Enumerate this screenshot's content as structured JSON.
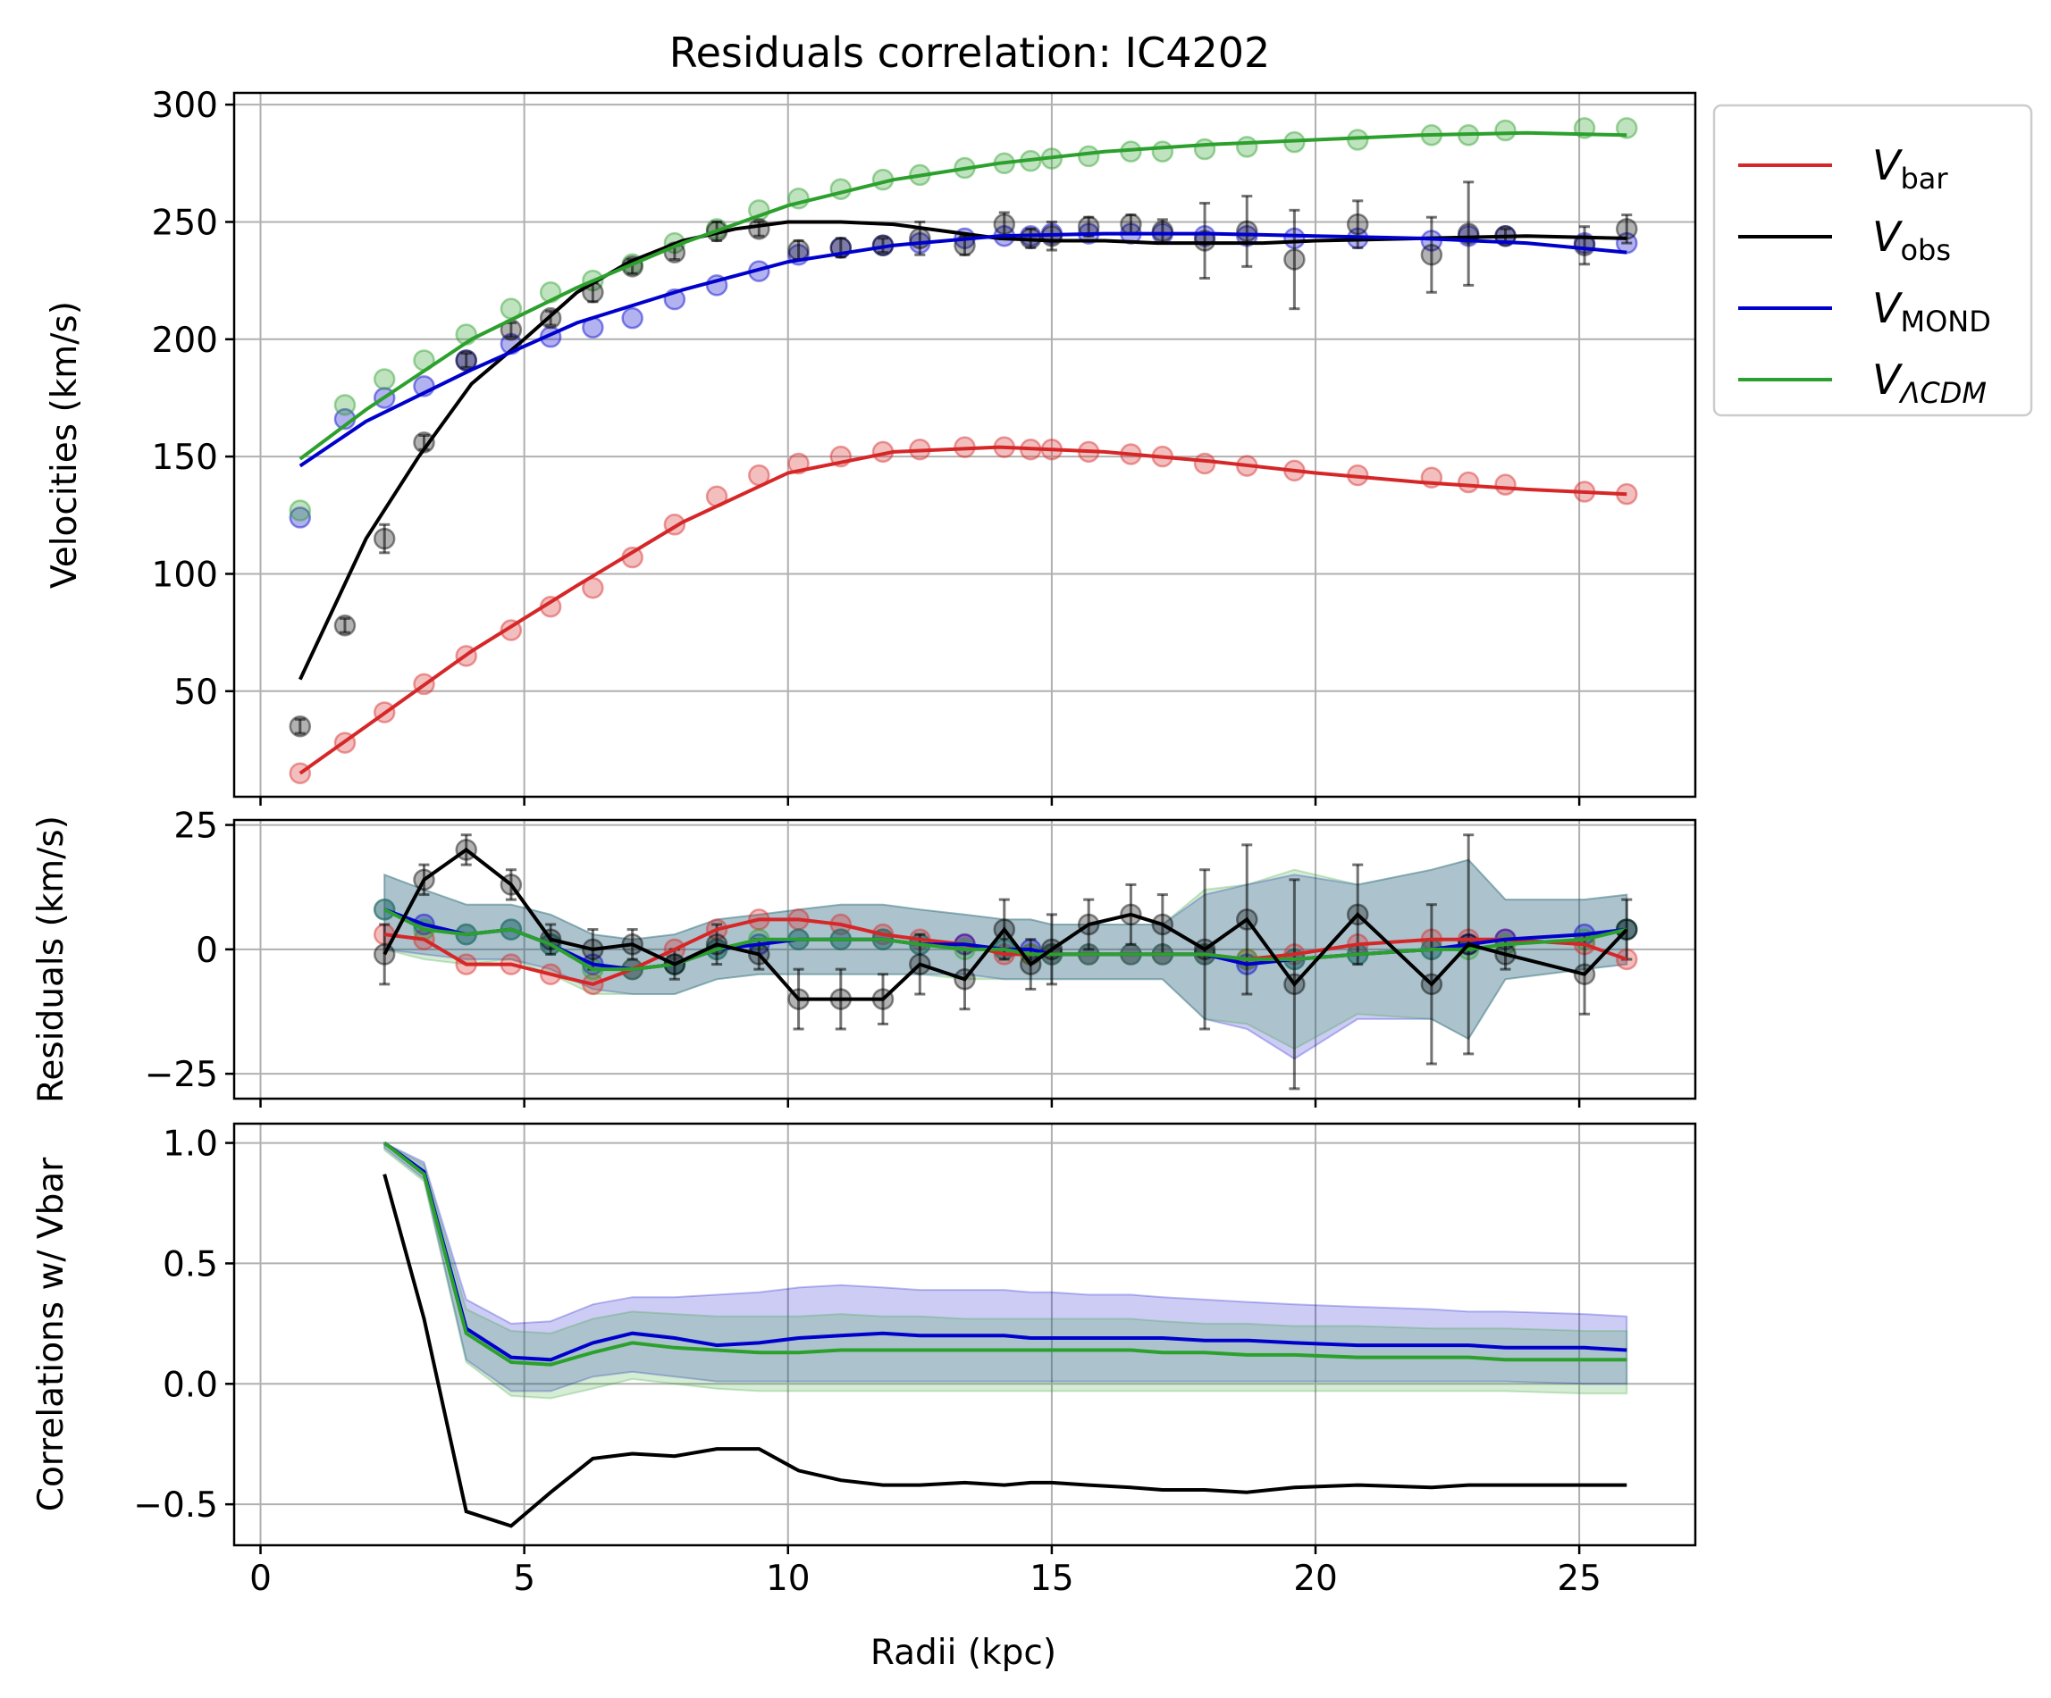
{
  "title": "Residuals correlation: IC4202",
  "colors": {
    "bar": "#d62728",
    "obs": "#000000",
    "mond": "#0000cc",
    "lcdm": "#2ca02c",
    "grid": "#b0b0b0"
  },
  "legend": {
    "placement": "outside upper-right",
    "entries": [
      {
        "key": "bar",
        "main": "V",
        "sub": "bar",
        "italic_sub": false
      },
      {
        "key": "obs",
        "main": "V",
        "sub": "obs",
        "italic_sub": false
      },
      {
        "key": "mond",
        "main": "V",
        "sub": "MOND",
        "italic_sub": false
      },
      {
        "key": "lcdm",
        "main": "V",
        "sub": "ΛCDM",
        "italic_sub": true
      }
    ]
  },
  "chart_data": [
    {
      "type": "line",
      "panel": "velocities",
      "ylabel": "Velocities (km/s)",
      "xlim": [
        -0.5,
        27.2
      ],
      "ylim": [
        5,
        305
      ],
      "xticks": [
        0,
        5,
        10,
        15,
        20,
        25
      ],
      "yticks": [
        50,
        100,
        150,
        200,
        250,
        300
      ],
      "grid": true,
      "series": [
        {
          "key": "bar",
          "name": "V_bar",
          "x": [
            0.75,
            1.6,
            2.35,
            3.1,
            3.9,
            4.75,
            5.5,
            6.3,
            7.05,
            7.85,
            8.65,
            9.45,
            10.2,
            11.0,
            11.8,
            12.5,
            13.35,
            14.1,
            14.6,
            15.0,
            15.7,
            16.5,
            17.1,
            17.9,
            18.7,
            19.6,
            20.8,
            22.2,
            22.9,
            23.6,
            25.1,
            25.9
          ],
          "y": [
            15,
            28,
            41,
            53,
            65,
            76,
            86,
            94,
            107,
            121,
            133,
            142,
            147,
            150,
            152,
            153,
            154,
            154,
            153,
            153,
            152,
            151,
            150,
            147,
            146,
            144,
            142,
            141,
            139,
            138,
            135,
            134
          ],
          "line_x": [
            0.75,
            2,
            4,
            6,
            8,
            10,
            12,
            14,
            16,
            18,
            20,
            22,
            24,
            25.9
          ],
          "line_y": [
            15,
            35,
            67,
            95,
            122,
            143,
            152,
            154,
            152,
            148,
            143,
            139,
            136,
            134
          ]
        },
        {
          "key": "obs",
          "name": "V_obs",
          "x": [
            0.75,
            1.6,
            2.35,
            3.1,
            3.9,
            4.75,
            5.5,
            6.3,
            7.05,
            7.85,
            8.65,
            9.45,
            10.2,
            11.0,
            11.8,
            12.5,
            13.35,
            14.1,
            14.6,
            15.0,
            15.7,
            16.5,
            17.1,
            17.9,
            18.7,
            19.6,
            20.8,
            22.2,
            22.9,
            23.6,
            25.1,
            25.9
          ],
          "y": [
            35,
            78,
            115,
            156,
            191,
            204,
            209,
            220,
            231,
            237,
            246,
            247,
            238,
            239,
            240,
            243,
            240,
            249,
            243,
            244,
            248,
            249,
            246,
            242,
            246,
            234,
            249,
            236,
            245,
            244,
            240,
            247
          ],
          "err": [
            3,
            3,
            6,
            3,
            3,
            3,
            3,
            4,
            3,
            3,
            4,
            3,
            4,
            4,
            3,
            7,
            4,
            5,
            4,
            6,
            4,
            4,
            5,
            16,
            15,
            21,
            10,
            16,
            22,
            3,
            8,
            6
          ],
          "line_x": [
            0.75,
            2,
            3,
            4,
            5,
            6,
            7,
            8,
            9,
            10,
            11,
            12,
            13,
            14,
            15,
            16,
            17,
            18,
            19,
            20,
            22,
            24,
            25.9
          ],
          "line_y": [
            55,
            115,
            150,
            181,
            200,
            220,
            233,
            242,
            247,
            250,
            250,
            249,
            246,
            243,
            242,
            242,
            241,
            241,
            241,
            242,
            243,
            244,
            243
          ]
        },
        {
          "key": "mond",
          "name": "V_MOND",
          "x": [
            0.75,
            1.6,
            2.35,
            3.1,
            3.9,
            4.75,
            5.5,
            6.3,
            7.05,
            7.85,
            8.65,
            9.45,
            10.2,
            11.0,
            11.8,
            12.5,
            13.35,
            14.1,
            14.6,
            15.0,
            15.7,
            16.5,
            17.1,
            17.9,
            18.7,
            19.6,
            20.8,
            22.2,
            22.9,
            23.6,
            25.1,
            25.9
          ],
          "y": [
            124,
            166,
            175,
            180,
            191,
            198,
            201,
            205,
            209,
            217,
            223,
            229,
            236,
            239,
            240,
            241,
            243,
            244,
            244,
            245,
            245,
            245,
            245,
            244,
            244,
            243,
            243,
            242,
            244,
            244,
            241,
            241
          ],
          "line_x": [
            0.75,
            2,
            4,
            6,
            8,
            10,
            12,
            14,
            16,
            18,
            20,
            22,
            24,
            25.9
          ],
          "line_y": [
            146,
            165,
            187,
            207,
            221,
            233,
            240,
            244,
            245,
            245,
            244,
            243,
            241,
            237
          ]
        },
        {
          "key": "lcdm",
          "name": "V_ΛCDM",
          "x": [
            0.75,
            1.6,
            2.35,
            3.1,
            3.9,
            4.75,
            5.5,
            6.3,
            7.05,
            7.85,
            8.65,
            9.45,
            10.2,
            11.0,
            11.8,
            12.5,
            13.35,
            14.1,
            14.6,
            15.0,
            15.7,
            16.5,
            17.1,
            17.9,
            18.7,
            19.6,
            20.8,
            22.2,
            22.9,
            23.6,
            25.1,
            25.9
          ],
          "y": [
            127,
            172,
            183,
            191,
            202,
            213,
            220,
            225,
            232,
            241,
            247,
            255,
            260,
            264,
            268,
            270,
            273,
            275,
            276,
            277,
            278,
            280,
            280,
            281,
            282,
            284,
            285,
            287,
            287,
            289,
            290,
            290
          ],
          "line_x": [
            0.75,
            2,
            4,
            6,
            8,
            10,
            12,
            14,
            16,
            18,
            20,
            22,
            24,
            25.9
          ],
          "line_y": [
            149,
            170,
            200,
            222,
            241,
            257,
            268,
            275,
            280,
            283,
            285,
            287,
            288,
            287
          ]
        }
      ]
    },
    {
      "type": "line",
      "panel": "residuals",
      "ylabel": "Residuals (km/s)",
      "xlim": [
        -0.5,
        27.2
      ],
      "ylim": [
        -30,
        26
      ],
      "xticks": [
        0,
        5,
        10,
        15,
        20,
        25
      ],
      "yticks": [
        -25,
        0,
        25
      ],
      "grid": true,
      "x": [
        2.35,
        3.1,
        3.9,
        4.75,
        5.5,
        6.3,
        7.05,
        7.85,
        8.65,
        9.45,
        10.2,
        11.0,
        11.8,
        12.5,
        13.35,
        14.1,
        14.6,
        15.0,
        15.7,
        16.5,
        17.1,
        17.9,
        18.7,
        19.6,
        20.8,
        22.2,
        22.9,
        23.6,
        25.1,
        25.9
      ],
      "series": [
        {
          "key": "bar",
          "name": "V_bar",
          "y": [
            3,
            2,
            -3,
            -3,
            -5,
            -7,
            -4,
            0,
            4,
            6,
            6,
            5,
            3,
            2,
            1,
            -1,
            -1,
            -1,
            -1,
            -1,
            -1,
            -1,
            -2,
            -1,
            1,
            2,
            2,
            2,
            1,
            -2
          ]
        },
        {
          "key": "obs",
          "name": "V_obs",
          "y": [
            -1,
            14,
            20,
            13,
            2,
            0,
            1,
            -3,
            1,
            -1,
            -10,
            -10,
            -10,
            -3,
            -6,
            4,
            -3,
            0,
            5,
            7,
            5,
            0,
            6,
            -7,
            7,
            -7,
            1,
            -1,
            -5,
            4
          ],
          "err": [
            6,
            3,
            3,
            3,
            3,
            4,
            3,
            3,
            4,
            3,
            6,
            6,
            5,
            6,
            6,
            6,
            5,
            7,
            5,
            6,
            6,
            16,
            15,
            21,
            10,
            16,
            22,
            3,
            8,
            6
          ]
        },
        {
          "key": "mond",
          "name": "V_MOND",
          "y": [
            8,
            5,
            3,
            4,
            1,
            -3,
            -4,
            -3,
            0,
            1,
            2,
            2,
            2,
            1,
            1,
            0,
            0,
            -1,
            -1,
            -1,
            -1,
            -1,
            -3,
            -2,
            -1,
            0,
            1,
            2,
            3,
            4
          ],
          "band_lo": [
            0,
            -1,
            -2,
            -2,
            -4,
            -8,
            -9,
            -9,
            -6,
            -5,
            -5,
            -5,
            -5,
            -5,
            -5,
            -6,
            -6,
            -6,
            -6,
            -6,
            -6,
            -14,
            -16,
            -22,
            -14,
            -14,
            -18,
            -6,
            -4,
            -3
          ],
          "band_hi": [
            15,
            12,
            9,
            9,
            7,
            3,
            2,
            3,
            6,
            7,
            8,
            9,
            9,
            8,
            7,
            6,
            6,
            5,
            5,
            5,
            5,
            11,
            13,
            15,
            13,
            16,
            18,
            10,
            10,
            11
          ]
        },
        {
          "key": "lcdm",
          "name": "V_ΛCDM",
          "y": [
            8,
            4,
            3,
            4,
            1,
            -4,
            -4,
            -3,
            0,
            2,
            2,
            2,
            2,
            1,
            0,
            0,
            -1,
            -1,
            -1,
            -1,
            -1,
            -1,
            -2,
            -2,
            -1,
            0,
            0,
            1,
            2,
            4
          ],
          "band_lo": [
            0,
            -2,
            -3,
            -2,
            -5,
            -9,
            -9,
            -9,
            -6,
            -5,
            -5,
            -5,
            -5,
            -5,
            -6,
            -6,
            -6,
            -6,
            -6,
            -6,
            -6,
            -14,
            -15,
            -20,
            -13,
            -14,
            -18,
            -6,
            -4,
            -3
          ],
          "band_hi": [
            15,
            12,
            9,
            9,
            7,
            3,
            2,
            3,
            6,
            7,
            8,
            9,
            9,
            8,
            7,
            6,
            6,
            5,
            5,
            5,
            5,
            12,
            13,
            16,
            13,
            16,
            18,
            10,
            10,
            11
          ]
        }
      ]
    },
    {
      "type": "line",
      "panel": "correlations",
      "ylabel": "Correlations w/ Vbar",
      "xlabel": "Radii (kpc)",
      "xlim": [
        -0.5,
        27.2
      ],
      "ylim": [
        -0.67,
        1.08
      ],
      "xticks": [
        0,
        5,
        10,
        15,
        20,
        25
      ],
      "yticks": [
        -0.5,
        0.0,
        0.5,
        1.0
      ],
      "grid": true,
      "x": [
        2.35,
        3.1,
        3.9,
        4.75,
        5.5,
        6.3,
        7.05,
        7.85,
        8.65,
        9.45,
        10.2,
        11.0,
        11.8,
        12.5,
        13.35,
        14.1,
        14.6,
        15.0,
        15.7,
        16.5,
        17.1,
        17.9,
        18.7,
        19.6,
        20.8,
        22.2,
        22.9,
        23.6,
        25.1,
        25.9
      ],
      "series": [
        {
          "key": "obs",
          "name": "V_obs",
          "y": [
            0.87,
            0.27,
            -0.53,
            -0.59,
            -0.45,
            -0.31,
            -0.29,
            -0.3,
            -0.27,
            -0.27,
            -0.36,
            -0.4,
            -0.42,
            -0.42,
            -0.41,
            -0.42,
            -0.41,
            -0.41,
            -0.42,
            -0.43,
            -0.44,
            -0.44,
            -0.45,
            -0.43,
            -0.42,
            -0.43,
            -0.42,
            -0.42,
            -0.42,
            -0.42
          ]
        },
        {
          "key": "mond",
          "name": "V_MOND",
          "y": [
            1.0,
            0.88,
            0.23,
            0.11,
            0.1,
            0.17,
            0.21,
            0.19,
            0.16,
            0.17,
            0.19,
            0.2,
            0.21,
            0.2,
            0.2,
            0.2,
            0.19,
            0.19,
            0.19,
            0.19,
            0.19,
            0.18,
            0.18,
            0.17,
            0.16,
            0.16,
            0.16,
            0.15,
            0.15,
            0.14
          ],
          "band_lo": [
            0.98,
            0.85,
            0.1,
            -0.03,
            -0.03,
            0.03,
            0.05,
            0.03,
            0.01,
            0.01,
            0.01,
            0.01,
            0.01,
            0.01,
            0.01,
            0.01,
            0.01,
            0.01,
            0.01,
            0.01,
            0.01,
            0.01,
            0.01,
            0.01,
            0.01,
            0.01,
            0.01,
            0.01,
            0.0,
            0.0
          ],
          "band_hi": [
            1.0,
            0.92,
            0.35,
            0.25,
            0.26,
            0.33,
            0.36,
            0.36,
            0.37,
            0.38,
            0.4,
            0.41,
            0.4,
            0.39,
            0.39,
            0.39,
            0.38,
            0.38,
            0.37,
            0.37,
            0.36,
            0.35,
            0.34,
            0.33,
            0.32,
            0.31,
            0.3,
            0.3,
            0.29,
            0.28
          ]
        },
        {
          "key": "lcdm",
          "name": "V_ΛCDM",
          "y": [
            1.0,
            0.87,
            0.21,
            0.09,
            0.08,
            0.13,
            0.17,
            0.15,
            0.14,
            0.13,
            0.13,
            0.14,
            0.14,
            0.14,
            0.14,
            0.14,
            0.14,
            0.14,
            0.14,
            0.14,
            0.13,
            0.13,
            0.12,
            0.12,
            0.11,
            0.11,
            0.11,
            0.1,
            0.1,
            0.1
          ],
          "band_lo": [
            0.97,
            0.84,
            0.09,
            -0.05,
            -0.06,
            -0.02,
            0.02,
            0.0,
            -0.02,
            -0.03,
            -0.03,
            -0.03,
            -0.03,
            -0.03,
            -0.03,
            -0.03,
            -0.03,
            -0.03,
            -0.03,
            -0.03,
            -0.03,
            -0.03,
            -0.03,
            -0.03,
            -0.03,
            -0.03,
            -0.03,
            -0.03,
            -0.04,
            -0.04
          ],
          "band_hi": [
            1.0,
            0.91,
            0.31,
            0.22,
            0.21,
            0.27,
            0.3,
            0.29,
            0.28,
            0.28,
            0.28,
            0.29,
            0.28,
            0.28,
            0.27,
            0.27,
            0.27,
            0.27,
            0.27,
            0.27,
            0.26,
            0.25,
            0.25,
            0.24,
            0.24,
            0.23,
            0.23,
            0.23,
            0.22,
            0.22
          ]
        }
      ]
    }
  ]
}
